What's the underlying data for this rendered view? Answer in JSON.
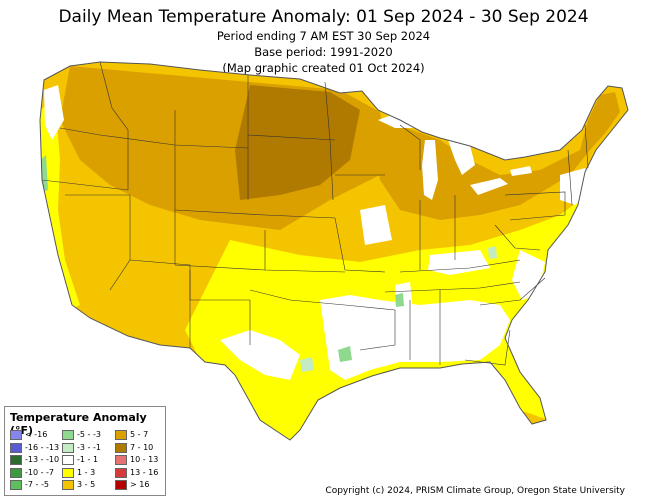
{
  "title": "Daily Mean Temperature Anomaly: 01 Sep 2024 - 30 Sep 2024",
  "subtitle_lines": [
    "Period ending 7 AM EST 30 Sep 2024",
    "Base period: 1991-2020",
    "(Map graphic created 01 Oct 2024)"
  ],
  "legend": {
    "title": "Temperature Anomaly (°F)",
    "items": [
      {
        "label": "< -16",
        "color": "#8585f0"
      },
      {
        "label": "-16 - -13",
        "color": "#5a5ad2"
      },
      {
        "label": "-13 - -10",
        "color": "#2e6b2e"
      },
      {
        "label": "-10 - -7",
        "color": "#3f9a3f"
      },
      {
        "label": "-7 - -5",
        "color": "#5cbf5c"
      },
      {
        "label": "-5 - -3",
        "color": "#8fd98f"
      },
      {
        "label": "-3 - -1",
        "color": "#c4ecc4"
      },
      {
        "label": "-1 - 1",
        "color": "#ffffff"
      },
      {
        "label": "1 - 3",
        "color": "#ffff00"
      },
      {
        "label": "3 - 5",
        "color": "#f5c400"
      },
      {
        "label": "5 - 7",
        "color": "#daa000"
      },
      {
        "label": "7 - 10",
        "color": "#b07a00"
      },
      {
        "label": "10 - 13",
        "color": "#e57373"
      },
      {
        "label": "13 - 16",
        "color": "#d83a3a"
      },
      {
        "label": "> 16",
        "color": "#b50000"
      }
    ]
  },
  "copyright": "Copyright (c) 2024, PRISM Climate Group, Oregon State University"
}
